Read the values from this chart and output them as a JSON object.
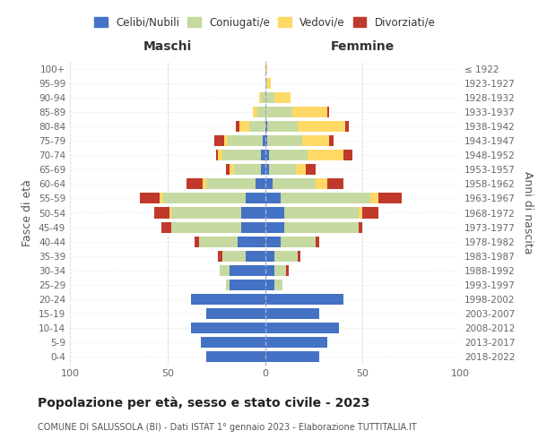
{
  "age_groups": [
    "0-4",
    "5-9",
    "10-14",
    "15-19",
    "20-24",
    "25-29",
    "30-34",
    "35-39",
    "40-44",
    "45-49",
    "50-54",
    "55-59",
    "60-64",
    "65-69",
    "70-74",
    "75-79",
    "80-84",
    "85-89",
    "90-94",
    "95-99",
    "100+"
  ],
  "birth_years": [
    "2018-2022",
    "2013-2017",
    "2008-2012",
    "2003-2007",
    "1998-2002",
    "1993-1997",
    "1988-1992",
    "1983-1987",
    "1978-1982",
    "1973-1977",
    "1968-1972",
    "1963-1967",
    "1958-1962",
    "1953-1957",
    "1948-1952",
    "1943-1947",
    "1938-1942",
    "1933-1937",
    "1928-1932",
    "1923-1927",
    "≤ 1922"
  ],
  "colors": {
    "celibi": "#4472c4",
    "coniugati": "#c5d9a0",
    "vedovi": "#ffd966",
    "divorziati": "#c0392b"
  },
  "maschi": {
    "celibi": [
      30,
      33,
      38,
      30,
      38,
      18,
      18,
      10,
      14,
      12,
      12,
      10,
      5,
      2,
      2,
      1,
      0,
      0,
      0,
      0,
      0
    ],
    "coniugati": [
      0,
      0,
      0,
      0,
      0,
      2,
      5,
      12,
      20,
      36,
      36,
      42,
      25,
      14,
      20,
      18,
      8,
      4,
      2,
      0,
      0
    ],
    "vedovi": [
      0,
      0,
      0,
      0,
      0,
      0,
      0,
      0,
      0,
      0,
      1,
      2,
      2,
      2,
      2,
      2,
      5,
      2,
      1,
      0,
      0
    ],
    "divorziati": [
      0,
      0,
      0,
      0,
      0,
      0,
      0,
      2,
      2,
      5,
      8,
      10,
      8,
      2,
      1,
      5,
      2,
      0,
      0,
      0,
      0
    ]
  },
  "femmine": {
    "celibi": [
      28,
      32,
      38,
      28,
      40,
      5,
      5,
      5,
      8,
      10,
      10,
      8,
      4,
      2,
      2,
      1,
      1,
      0,
      0,
      0,
      0
    ],
    "coniugati": [
      0,
      0,
      0,
      0,
      0,
      4,
      6,
      12,
      18,
      38,
      38,
      46,
      22,
      14,
      20,
      18,
      16,
      14,
      5,
      1,
      0
    ],
    "vedovi": [
      0,
      0,
      0,
      0,
      0,
      0,
      0,
      0,
      0,
      0,
      2,
      4,
      6,
      5,
      18,
      14,
      24,
      18,
      8,
      2,
      1
    ],
    "divorziati": [
      0,
      0,
      0,
      0,
      0,
      0,
      1,
      1,
      2,
      2,
      8,
      12,
      8,
      5,
      5,
      2,
      2,
      1,
      0,
      0,
      0
    ]
  },
  "xlim": 100,
  "title": "Popolazione per età, sesso e stato civile - 2023",
  "subtitle": "COMUNE DI SALUSSOLA (BI) - Dati ISTAT 1° gennaio 2023 - Elaborazione TUTTITALIA.IT",
  "ylabel_left": "Fasce di età",
  "ylabel_right": "Anni di nascita",
  "xlabel_left": "Maschi",
  "xlabel_right": "Femmine",
  "legend_labels": [
    "Celibi/Nubili",
    "Coniugati/e",
    "Vedovi/e",
    "Divorziati/e"
  ],
  "bg_color": "#ffffff",
  "grid_color": "#cccccc"
}
